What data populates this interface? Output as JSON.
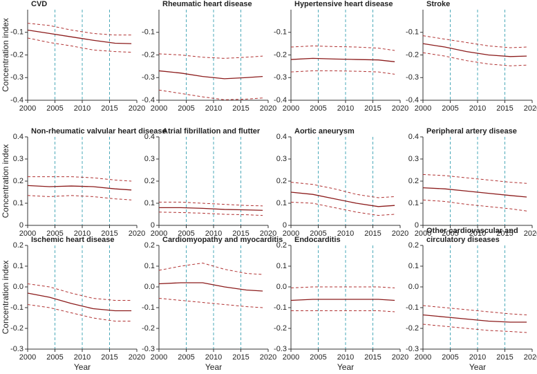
{
  "chart_data": [
    {
      "type": "line",
      "title": "CVD",
      "ylabel": "Concentration index",
      "x": [
        2000,
        2004,
        2008,
        2012,
        2016,
        2019
      ],
      "xlim": [
        2000,
        2020
      ],
      "xticks": [
        2000,
        2005,
        2010,
        2015,
        2020
      ],
      "ylim": [
        -0.4,
        0
      ],
      "yticks": [
        -0.4,
        -0.3,
        -0.2,
        -0.1
      ],
      "vlines": [
        2005,
        2010,
        2015
      ],
      "vline_color": "#4aa8b8",
      "series": [
        {
          "color": "#8b1a1a",
          "dashed": false,
          "values": [
            -0.09,
            -0.105,
            -0.12,
            -0.135,
            -0.148,
            -0.15
          ]
        },
        {
          "color": "#b03030",
          "dashed": true,
          "values": [
            -0.06,
            -0.07,
            -0.09,
            -0.105,
            -0.112,
            -0.112
          ]
        },
        {
          "color": "#b03030",
          "dashed": true,
          "values": [
            -0.125,
            -0.145,
            -0.16,
            -0.178,
            -0.185,
            -0.188
          ]
        }
      ]
    },
    {
      "type": "line",
      "title": "Rheumatic heart disease",
      "x": [
        2000,
        2004,
        2008,
        2012,
        2016,
        2019
      ],
      "xlim": [
        2000,
        2020
      ],
      "xticks": [
        2000,
        2005,
        2010,
        2015,
        2020
      ],
      "ylim": [
        -0.4,
        0
      ],
      "yticks": [
        -0.4,
        -0.3,
        -0.2,
        -0.1
      ],
      "vlines": [
        2005,
        2010,
        2015
      ],
      "vline_color": "#4aa8b8",
      "series": [
        {
          "color": "#8b1a1a",
          "dashed": false,
          "values": [
            -0.27,
            -0.28,
            -0.295,
            -0.305,
            -0.3,
            -0.295
          ]
        },
        {
          "color": "#b03030",
          "dashed": true,
          "values": [
            -0.195,
            -0.2,
            -0.21,
            -0.215,
            -0.21,
            -0.205
          ]
        },
        {
          "color": "#b03030",
          "dashed": true,
          "values": [
            -0.355,
            -0.37,
            -0.385,
            -0.398,
            -0.395,
            -0.39
          ]
        }
      ]
    },
    {
      "type": "line",
      "title": "Hypertensive heart disease",
      "x": [
        2000,
        2004,
        2008,
        2012,
        2016,
        2019
      ],
      "xlim": [
        2000,
        2020
      ],
      "xticks": [
        2000,
        2005,
        2010,
        2015,
        2020
      ],
      "ylim": [
        -0.4,
        0
      ],
      "yticks": [
        -0.4,
        -0.3,
        -0.2,
        -0.1
      ],
      "vlines": [
        2005,
        2010,
        2015
      ],
      "vline_color": "#4aa8b8",
      "series": [
        {
          "color": "#8b1a1a",
          "dashed": false,
          "values": [
            -0.22,
            -0.215,
            -0.218,
            -0.22,
            -0.222,
            -0.23
          ]
        },
        {
          "color": "#b03030",
          "dashed": true,
          "values": [
            -0.165,
            -0.16,
            -0.163,
            -0.165,
            -0.17,
            -0.18
          ]
        },
        {
          "color": "#b03030",
          "dashed": true,
          "values": [
            -0.275,
            -0.27,
            -0.27,
            -0.272,
            -0.275,
            -0.285
          ]
        }
      ]
    },
    {
      "type": "line",
      "title": "Stroke",
      "x": [
        2000,
        2004,
        2008,
        2012,
        2016,
        2019
      ],
      "xlim": [
        2000,
        2020
      ],
      "xticks": [
        2000,
        2005,
        2010,
        2015,
        2020
      ],
      "ylim": [
        -0.4,
        0
      ],
      "yticks": [
        -0.4,
        -0.3,
        -0.2,
        -0.1
      ],
      "vlines": [
        2005,
        2010,
        2015
      ],
      "vline_color": "#4aa8b8",
      "series": [
        {
          "color": "#8b1a1a",
          "dashed": false,
          "values": [
            -0.15,
            -0.165,
            -0.185,
            -0.2,
            -0.207,
            -0.205
          ]
        },
        {
          "color": "#b03030",
          "dashed": true,
          "values": [
            -0.115,
            -0.13,
            -0.145,
            -0.16,
            -0.168,
            -0.165
          ]
        },
        {
          "color": "#b03030",
          "dashed": true,
          "values": [
            -0.19,
            -0.205,
            -0.225,
            -0.24,
            -0.248,
            -0.245
          ]
        }
      ]
    },
    {
      "type": "line",
      "title": "Non-rheumatic valvular heart disease",
      "ylabel": "Concentration index",
      "x": [
        2000,
        2004,
        2008,
        2012,
        2016,
        2019
      ],
      "xlim": [
        2000,
        2020
      ],
      "xticks": [
        2000,
        2005,
        2010,
        2015,
        2020
      ],
      "ylim": [
        0,
        0.4
      ],
      "yticks": [
        0,
        0.1,
        0.2,
        0.3,
        0.4
      ],
      "vlines": [
        2005,
        2010,
        2015
      ],
      "vline_color": "#4aa8b8",
      "series": [
        {
          "color": "#8b1a1a",
          "dashed": false,
          "values": [
            0.18,
            0.175,
            0.178,
            0.175,
            0.165,
            0.16
          ]
        },
        {
          "color": "#b03030",
          "dashed": true,
          "values": [
            0.22,
            0.22,
            0.22,
            0.215,
            0.205,
            0.2
          ]
        },
        {
          "color": "#b03030",
          "dashed": true,
          "values": [
            0.135,
            0.13,
            0.135,
            0.13,
            0.12,
            0.115
          ]
        }
      ]
    },
    {
      "type": "line",
      "title": "Atrial fibrillation and flutter",
      "x": [
        2000,
        2004,
        2008,
        2012,
        2016,
        2019
      ],
      "xlim": [
        2000,
        2020
      ],
      "xticks": [
        2000,
        2005,
        2010,
        2015,
        2020
      ],
      "ylim": [
        0,
        0.4
      ],
      "yticks": [
        0,
        0.1,
        0.2,
        0.3,
        0.4
      ],
      "vlines": [
        2005,
        2010,
        2015
      ],
      "vline_color": "#4aa8b8",
      "series": [
        {
          "color": "#8b1a1a",
          "dashed": false,
          "values": [
            0.08,
            0.08,
            0.077,
            0.072,
            0.07,
            0.068
          ]
        },
        {
          "color": "#b03030",
          "dashed": true,
          "values": [
            0.105,
            0.105,
            0.1,
            0.095,
            0.09,
            0.088
          ]
        },
        {
          "color": "#b03030",
          "dashed": true,
          "values": [
            0.06,
            0.058,
            0.055,
            0.05,
            0.048,
            0.045
          ]
        }
      ]
    },
    {
      "type": "line",
      "title": "Aortic aneurysm",
      "x": [
        2000,
        2004,
        2008,
        2012,
        2016,
        2019
      ],
      "xlim": [
        2000,
        2020
      ],
      "xticks": [
        2000,
        2005,
        2010,
        2015,
        2020
      ],
      "ylim": [
        0,
        0.4
      ],
      "yticks": [
        0,
        0.1,
        0.2,
        0.3,
        0.4
      ],
      "vlines": [
        2005,
        2010,
        2015
      ],
      "vline_color": "#4aa8b8",
      "series": [
        {
          "color": "#8b1a1a",
          "dashed": false,
          "values": [
            0.15,
            0.14,
            0.12,
            0.1,
            0.085,
            0.09
          ]
        },
        {
          "color": "#b03030",
          "dashed": true,
          "values": [
            0.195,
            0.185,
            0.165,
            0.14,
            0.125,
            0.13
          ]
        },
        {
          "color": "#b03030",
          "dashed": true,
          "values": [
            0.105,
            0.1,
            0.08,
            0.06,
            0.045,
            0.05
          ]
        }
      ]
    },
    {
      "type": "line",
      "title": "Peripheral artery disease",
      "x": [
        2000,
        2004,
        2008,
        2012,
        2016,
        2019
      ],
      "xlim": [
        2000,
        2020
      ],
      "xticks": [
        2000,
        2005,
        2010,
        2015,
        2020
      ],
      "ylim": [
        0,
        0.4
      ],
      "yticks": [
        0,
        0.1,
        0.2,
        0.3,
        0.4
      ],
      "vlines": [
        2005,
        2010,
        2015
      ],
      "vline_color": "#4aa8b8",
      "series": [
        {
          "color": "#8b1a1a",
          "dashed": false,
          "values": [
            0.17,
            0.165,
            0.155,
            0.145,
            0.135,
            0.128
          ]
        },
        {
          "color": "#b03030",
          "dashed": true,
          "values": [
            0.23,
            0.225,
            0.215,
            0.205,
            0.195,
            0.19
          ]
        },
        {
          "color": "#b03030",
          "dashed": true,
          "values": [
            0.115,
            0.108,
            0.095,
            0.085,
            0.075,
            0.065
          ]
        }
      ]
    },
    {
      "type": "line",
      "title": "Ischemic heart disease",
      "ylabel": "Concentration index",
      "xlabel": "Year",
      "x": [
        2000,
        2004,
        2008,
        2012,
        2016,
        2019
      ],
      "xlim": [
        2000,
        2020
      ],
      "xticks": [
        2000,
        2005,
        2010,
        2015,
        2020
      ],
      "ylim": [
        -0.3,
        0.2
      ],
      "yticks": [
        -0.3,
        -0.2,
        -0.1,
        {
          "value": 0,
          "label": "0.0"
        },
        0.1,
        0.2
      ],
      "vlines": [
        2005,
        2010,
        2015
      ],
      "vline_color": "#4aa8b8",
      "series": [
        {
          "color": "#8b1a1a",
          "dashed": false,
          "values": [
            -0.03,
            -0.05,
            -0.08,
            -0.105,
            -0.115,
            -0.115
          ]
        },
        {
          "color": "#b03030",
          "dashed": true,
          "values": [
            0.015,
            0,
            -0.03,
            -0.055,
            -0.065,
            -0.065
          ]
        },
        {
          "color": "#b03030",
          "dashed": true,
          "values": [
            -0.085,
            -0.1,
            -0.125,
            -0.15,
            -0.165,
            -0.165
          ]
        }
      ]
    },
    {
      "type": "line",
      "title": "Cardiomyopathy and myocarditis",
      "xlabel": "Year",
      "x": [
        2000,
        2004,
        2008,
        2012,
        2016,
        2019
      ],
      "xlim": [
        2000,
        2020
      ],
      "xticks": [
        2000,
        2005,
        2010,
        2015,
        2020
      ],
      "ylim": [
        -0.3,
        0.2
      ],
      "yticks": [
        -0.3,
        -0.2,
        -0.1,
        {
          "value": 0,
          "label": "0.0"
        },
        0.1,
        0.2
      ],
      "vlines": [
        2005,
        2010,
        2015
      ],
      "vline_color": "#4aa8b8",
      "series": [
        {
          "color": "#8b1a1a",
          "dashed": false,
          "values": [
            0.015,
            0.02,
            0.02,
            0.0,
            -0.015,
            -0.02
          ]
        },
        {
          "color": "#b03030",
          "dashed": true,
          "values": [
            0.08,
            0.1,
            0.115,
            0.085,
            0.065,
            0.06
          ]
        },
        {
          "color": "#b03030",
          "dashed": true,
          "values": [
            -0.055,
            -0.065,
            -0.075,
            -0.085,
            -0.095,
            -0.1
          ]
        }
      ]
    },
    {
      "type": "line",
      "title": "Endocarditis",
      "xlabel": "Year",
      "x": [
        2000,
        2004,
        2008,
        2012,
        2016,
        2019
      ],
      "xlim": [
        2000,
        2020
      ],
      "xticks": [
        2000,
        2005,
        2010,
        2015,
        2020
      ],
      "ylim": [
        -0.3,
        0.2
      ],
      "yticks": [
        -0.3,
        -0.2,
        -0.1,
        {
          "value": 0,
          "label": "0.0"
        },
        0.1,
        0.2
      ],
      "vlines": [
        2005,
        2010,
        2015
      ],
      "vline_color": "#4aa8b8",
      "series": [
        {
          "color": "#8b1a1a",
          "dashed": false,
          "values": [
            -0.065,
            -0.06,
            -0.06,
            -0.06,
            -0.06,
            -0.065
          ]
        },
        {
          "color": "#b03030",
          "dashed": true,
          "values": [
            -0.005,
            0,
            0,
            0,
            0,
            -0.005
          ]
        },
        {
          "color": "#b03030",
          "dashed": true,
          "values": [
            -0.115,
            -0.115,
            -0.115,
            -0.115,
            -0.115,
            -0.12
          ]
        }
      ]
    },
    {
      "type": "line",
      "title": [
        "Other cardiovascular and",
        "circulatory diseases"
      ],
      "xlabel": "Year",
      "x": [
        2000,
        2004,
        2008,
        2012,
        2016,
        2019
      ],
      "xlim": [
        2000,
        2020
      ],
      "xticks": [
        2000,
        2005,
        2010,
        2015,
        2020
      ],
      "ylim": [
        -0.3,
        0.2
      ],
      "yticks": [
        -0.3,
        -0.2,
        -0.1,
        {
          "value": 0,
          "label": "0.0"
        },
        0.1,
        0.2
      ],
      "vlines": [
        2005,
        2010,
        2015
      ],
      "vline_color": "#4aa8b8",
      "series": [
        {
          "color": "#8b1a1a",
          "dashed": false,
          "values": [
            -0.135,
            -0.145,
            -0.155,
            -0.165,
            -0.17,
            -0.17
          ]
        },
        {
          "color": "#b03030",
          "dashed": true,
          "values": [
            -0.09,
            -0.1,
            -0.11,
            -0.12,
            -0.13,
            -0.135
          ]
        },
        {
          "color": "#b03030",
          "dashed": true,
          "values": [
            -0.18,
            -0.19,
            -0.2,
            -0.21,
            -0.215,
            -0.22
          ]
        }
      ]
    }
  ]
}
